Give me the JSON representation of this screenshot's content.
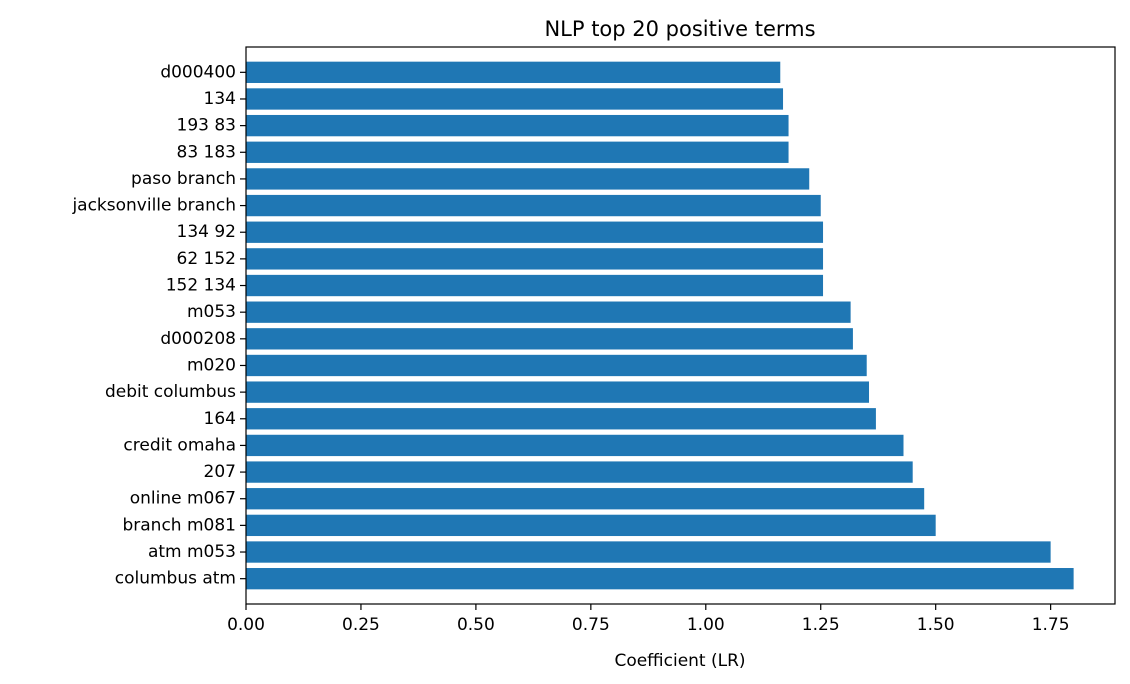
{
  "chart_data": {
    "type": "bar",
    "orientation": "horizontal",
    "title": "NLP top 20 positive terms",
    "xlabel": "Coefficient (LR)",
    "ylabel": "",
    "xlim": [
      0,
      1.89
    ],
    "x_ticks": [
      0,
      0.25,
      0.5,
      0.75,
      1.0,
      1.25,
      1.5,
      1.75
    ],
    "x_tick_labels": [
      "0.00",
      "0.25",
      "0.50",
      "0.75",
      "1.00",
      "1.25",
      "1.50",
      "1.75"
    ],
    "grid": false,
    "bar_color": "#1f77b4",
    "categories": [
      "columbus atm",
      "atm m053",
      "branch m081",
      "online m067",
      "207",
      "credit omaha",
      "164",
      "debit columbus",
      "m020",
      "d000208",
      "m053",
      "152 134",
      "62 152",
      "134 92",
      "jacksonville branch",
      "paso branch",
      "83 183",
      "193 83",
      "134",
      "d000400"
    ],
    "values": [
      1.8,
      1.75,
      1.5,
      1.475,
      1.45,
      1.43,
      1.37,
      1.355,
      1.35,
      1.32,
      1.315,
      1.255,
      1.255,
      1.255,
      1.25,
      1.225,
      1.18,
      1.18,
      1.168,
      1.162
    ]
  }
}
